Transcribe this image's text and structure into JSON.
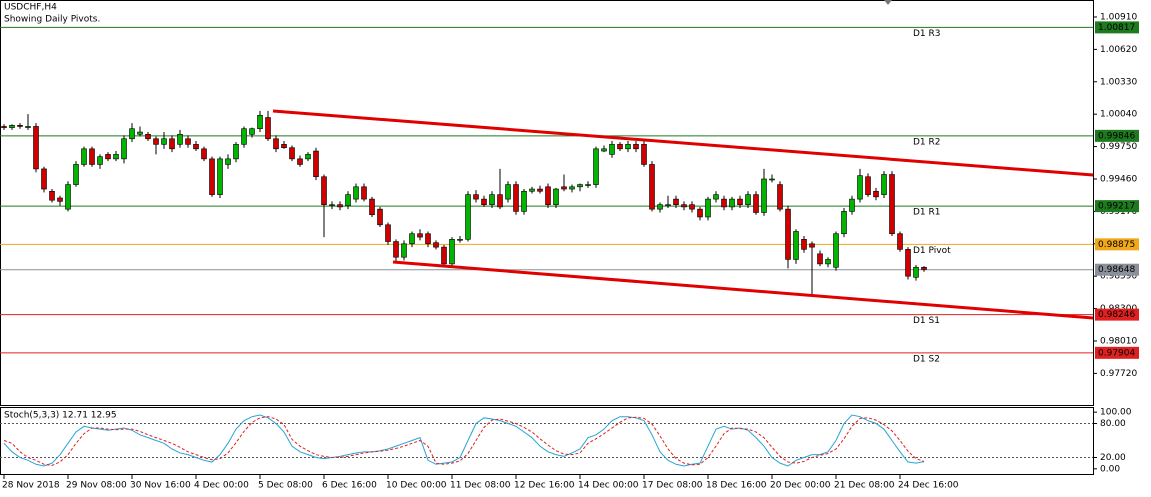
{
  "chart_data": [
    {
      "type": "candlestick",
      "title": "USDCHF,H4",
      "subtitle": "Showing Daily Pivots.",
      "categories": [
        "28 Nov 2018",
        null,
        null,
        null,
        null,
        null,
        null,
        null,
        "29 Nov 08:00",
        null,
        null,
        null,
        null,
        null,
        null,
        null,
        "30 Nov 16:00",
        null,
        null,
        null,
        null,
        null,
        null,
        null,
        "4 Dec 00:00",
        null,
        null,
        null,
        null,
        null,
        null,
        null,
        "5 Dec 08:00",
        null,
        null,
        null,
        null,
        null,
        null,
        null,
        "6 Dec 16:00",
        null,
        null,
        null,
        null,
        null,
        null,
        null,
        "10 Dec 00:00",
        null,
        null,
        null,
        null,
        null,
        null,
        null,
        "11 Dec 08:00",
        null,
        null,
        null,
        null,
        null,
        null,
        null,
        "12 Dec 16:00",
        null,
        null,
        null,
        null,
        null,
        null,
        null,
        "14 Dec 00:00",
        null,
        null,
        null,
        null,
        null,
        null,
        null,
        "17 Dec 08:00",
        null,
        null,
        null,
        null,
        null,
        null,
        null,
        "18 Dec 16:00",
        null,
        null,
        null,
        null,
        null,
        null,
        null,
        "20 Dec 00:00",
        null,
        null,
        null,
        null,
        null,
        null,
        null,
        "21 Dec 08:00",
        null,
        null,
        null,
        null,
        null,
        null,
        null,
        "24 Dec 16:00",
        null,
        null,
        null
      ],
      "open": [
        0.9993,
        0.9992,
        0.9994,
        0.9992,
        0.9993,
        0.9955,
        0.9935,
        0.9929,
        0.9919,
        0.9941,
        0.9959,
        0.9973,
        0.9959,
        0.9968,
        0.9964,
        0.9964,
        0.9982,
        0.9986,
        0.9986,
        0.9982,
        0.9977,
        0.9982,
        0.9977,
        0.9982,
        0.9977,
        0.9973,
        0.9964,
        0.9932,
        0.9959,
        0.9964,
        0.9977,
        0.9986,
        0.9991,
        1.0001,
        0.9982,
        0.9977,
        0.9974,
        0.9964,
        0.9964,
        0.9971,
        0.9948,
        0.9923,
        0.9923,
        0.9922,
        0.9928,
        0.9939,
        0.9928,
        0.9919,
        0.9905,
        0.989,
        0.9876,
        0.9888,
        0.9897,
        0.9897,
        0.9889,
        0.9885,
        0.987,
        0.9892,
        0.9892,
        0.9932,
        0.9928,
        0.9923,
        0.9932,
        0.9928,
        0.9941,
        0.9917,
        0.9935,
        0.9937,
        0.9939,
        0.9923,
        0.9939,
        0.9937,
        0.9939,
        0.9941,
        0.9941,
        0.9971,
        0.9968,
        0.9977,
        0.9973,
        0.9977,
        0.9977,
        0.9959,
        0.9919,
        0.9923,
        0.9928,
        0.9923,
        0.9923,
        0.9919,
        0.9912,
        0.9928,
        0.9928,
        0.9921,
        0.9928,
        0.9923,
        0.9932,
        0.9916,
        0.9946,
        0.9941,
        0.9919,
        0.9874,
        0.9892,
        0.9888,
        0.9879,
        0.987,
        0.9867,
        0.9897,
        0.9917,
        0.9928,
        0.9948,
        0.9935,
        0.9932,
        0.995,
        0.9897,
        0.9883,
        0.9858,
        0.9867
      ],
      "high": [
        0.9995,
        0.9995,
        0.9996,
        1.0004,
        0.9996,
        0.9957,
        0.9937,
        0.9931,
        0.9944,
        0.9962,
        0.9975,
        0.9975,
        0.9968,
        0.997,
        0.9971,
        0.9985,
        0.9996,
        0.9993,
        0.9988,
        0.9984,
        0.9988,
        0.9985,
        0.999,
        0.9985,
        0.998,
        0.9975,
        0.9966,
        0.9966,
        0.9968,
        0.9979,
        0.9993,
        0.9992,
        1.0007,
        1.0007,
        0.9985,
        0.998,
        0.9976,
        0.9967,
        0.997,
        0.9974,
        0.995,
        0.9926,
        0.9926,
        0.9935,
        0.9942,
        0.9942,
        0.993,
        0.9921,
        0.9907,
        0.9892,
        0.9891,
        0.9899,
        0.9901,
        0.9899,
        0.9891,
        0.9887,
        0.9894,
        0.9895,
        0.9935,
        0.9936,
        0.9931,
        0.9935,
        0.9955,
        0.9944,
        0.9944,
        0.9937,
        0.9939,
        0.994,
        0.9942,
        0.9938,
        0.995,
        0.9941,
        0.9942,
        0.9944,
        0.9975,
        0.9976,
        0.998,
        0.9979,
        0.998,
        0.998,
        0.998,
        0.9962,
        0.9925,
        0.9931,
        0.9931,
        0.9926,
        0.9926,
        0.9921,
        0.993,
        0.9935,
        0.9931,
        0.993,
        0.9931,
        0.9935,
        0.9935,
        0.9955,
        0.995,
        0.9944,
        0.9922,
        0.9901,
        0.9895,
        0.989,
        0.9882,
        0.9876,
        0.9899,
        0.992,
        0.9931,
        0.9955,
        0.9951,
        0.9938,
        0.9953,
        0.9953,
        0.9899,
        0.9885,
        0.9869,
        0.9868
      ],
      "low": [
        0.999,
        0.999,
        0.9991,
        0.999,
        0.9952,
        0.9934,
        0.9925,
        0.9922,
        0.9917,
        0.9939,
        0.9957,
        0.9957,
        0.9955,
        0.9962,
        0.9962,
        0.996,
        0.9979,
        0.9984,
        0.998,
        0.9968,
        0.9973,
        0.997,
        0.9974,
        0.9974,
        0.9971,
        0.9962,
        0.993,
        0.9929,
        0.9955,
        0.9961,
        0.9974,
        0.9983,
        0.9988,
        0.998,
        0.997,
        0.9973,
        0.9962,
        0.9957,
        0.9962,
        0.9945,
        0.9894,
        0.9919,
        0.9918,
        0.9919,
        0.9925,
        0.9926,
        0.9912,
        0.9903,
        0.9887,
        0.9872,
        0.9873,
        0.9885,
        0.9891,
        0.9885,
        0.9883,
        0.9868,
        0.9867,
        0.9889,
        0.989,
        0.9925,
        0.9921,
        0.992,
        0.9919,
        0.9925,
        0.9914,
        0.9914,
        0.9933,
        0.9933,
        0.992,
        0.992,
        0.9935,
        0.9934,
        0.9935,
        0.9938,
        0.9938,
        0.997,
        0.9965,
        0.9971,
        0.997,
        0.997,
        0.9957,
        0.9917,
        0.9916,
        0.992,
        0.992,
        0.9918,
        0.9916,
        0.9909,
        0.9909,
        0.9925,
        0.9918,
        0.9918,
        0.992,
        0.992,
        0.9914,
        0.9913,
        0.9943,
        0.9917,
        0.9866,
        0.987,
        0.988,
        0.9842,
        0.9868,
        0.9867,
        0.9864,
        0.9894,
        0.9914,
        0.9925,
        0.993,
        0.9927,
        0.9929,
        0.9895,
        0.9881,
        0.9856,
        0.9855,
        0.9863
      ],
      "close": [
        0.9992,
        0.9994,
        0.9993,
        0.9993,
        0.9955,
        0.9937,
        0.9927,
        0.9926,
        0.9941,
        0.9959,
        0.9973,
        0.9959,
        0.9966,
        0.9964,
        0.9968,
        0.9982,
        0.9991,
        0.9988,
        0.9982,
        0.9977,
        0.9982,
        0.9973,
        0.9986,
        0.9977,
        0.9973,
        0.9964,
        0.9932,
        0.9964,
        0.9964,
        0.9977,
        0.9991,
        0.9991,
        1.0003,
        0.9982,
        0.9973,
        0.9974,
        0.9964,
        0.9959,
        0.9968,
        0.9948,
        0.9923,
        0.9923,
        0.9921,
        0.9932,
        0.9939,
        0.9928,
        0.9914,
        0.9905,
        0.989,
        0.9876,
        0.9888,
        0.9897,
        0.9894,
        0.9888,
        0.9885,
        0.987,
        0.9892,
        0.9892,
        0.9932,
        0.9928,
        0.9923,
        0.9932,
        0.9921,
        0.9941,
        0.9917,
        0.9935,
        0.9937,
        0.9935,
        0.9923,
        0.9937,
        0.9937,
        0.9939,
        0.9941,
        0.9941,
        0.9973,
        0.9973,
        0.9977,
        0.9973,
        0.9977,
        0.9973,
        0.9959,
        0.9919,
        0.9923,
        0.9923,
        0.9923,
        0.9921,
        0.9919,
        0.9912,
        0.9928,
        0.9932,
        0.9921,
        0.9928,
        0.9923,
        0.9932,
        0.9916,
        0.9946,
        0.9946,
        0.9919,
        0.9874,
        0.9899,
        0.9883,
        0.9885,
        0.987,
        0.9874,
        0.9897,
        0.9917,
        0.9928,
        0.9949,
        0.9932,
        0.993,
        0.995,
        0.9897,
        0.9883,
        0.9859,
        0.9867,
        0.9865
      ],
      "bull_color": "#00b400",
      "bear_color": "#d00000",
      "ylim": [
        0.97437,
        1.01062
      ],
      "yticks": [
        {
          "value": 1.0091,
          "label": "1.00910"
        },
        {
          "value": 1.0062,
          "label": "1.00620"
        },
        {
          "value": 1.0033,
          "label": "1.00330"
        },
        {
          "value": 1.0004,
          "label": "1.00040"
        },
        {
          "value": 0.9975,
          "label": "0.99750"
        },
        {
          "value": 0.9946,
          "label": "0.99460"
        },
        {
          "value": 0.9917,
          "label": "0.99170"
        },
        {
          "value": 0.9888,
          "label": "0.98880"
        },
        {
          "value": 0.9859,
          "label": "0.98590"
        },
        {
          "value": 0.983,
          "label": "0.98300"
        },
        {
          "value": 0.9801,
          "label": "0.98010"
        },
        {
          "value": 0.9772,
          "label": "0.97720"
        }
      ],
      "levels": [
        {
          "name": "D1 R3",
          "value": 1.00817,
          "label": "1.00817",
          "color": "#1e7a1e"
        },
        {
          "name": "D1 R2",
          "value": 0.99846,
          "label": "0.99846",
          "color": "#1e7a1e"
        },
        {
          "name": "D1 R1",
          "value": 0.99217,
          "label": "0.99217",
          "color": "#1e7a1e"
        },
        {
          "name": "D1 Pivot",
          "value": 0.98875,
          "label": "0.98875",
          "color": "#f0a818"
        },
        {
          "name": "D1 S1",
          "value": 0.98246,
          "label": "0.98246",
          "color": "#e02020"
        },
        {
          "name": "D1 S2",
          "value": 0.97904,
          "label": "0.97904",
          "color": "#e02020"
        }
      ],
      "last_price": {
        "value": 0.98648,
        "label": "0.98648",
        "color": "#8a9099"
      }
    },
    {
      "type": "line",
      "title": "Stoch(5,3,3) 12.71 12.95",
      "series": [
        {
          "color": "#27a5d6",
          "style": "solid",
          "values": [
            45,
            30,
            20,
            15,
            8,
            5,
            10,
            25,
            45,
            65,
            75,
            72,
            70,
            68,
            70,
            72,
            68,
            60,
            55,
            50,
            45,
            35,
            28,
            25,
            20,
            15,
            12,
            25,
            45,
            70,
            85,
            92,
            95,
            90,
            80,
            65,
            40,
            30,
            25,
            20,
            18,
            20,
            22,
            25,
            28,
            30,
            30,
            32,
            35,
            40,
            45,
            50,
            55,
            15,
            8,
            10,
            12,
            20,
            50,
            80,
            90,
            88,
            85,
            80,
            75,
            65,
            55,
            40,
            30,
            25,
            22,
            28,
            35,
            55,
            60,
            70,
            85,
            92,
            92,
            90,
            85,
            60,
            30,
            15,
            8,
            5,
            8,
            10,
            40,
            70,
            75,
            70,
            72,
            68,
            55,
            40,
            20,
            10,
            5,
            15,
            20,
            25,
            25,
            30,
            50,
            80,
            95,
            92,
            85,
            80,
            70,
            50,
            30,
            12,
            10,
            12.71
          ]
        },
        {
          "color": "#e02020",
          "style": "dashed",
          "values": [
            50,
            45,
            30,
            20,
            15,
            8,
            6,
            12,
            25,
            45,
            62,
            72,
            72,
            70,
            69,
            70,
            70,
            66,
            60,
            55,
            50,
            45,
            38,
            30,
            25,
            20,
            16,
            18,
            28,
            46,
            66,
            82,
            90,
            92,
            88,
            78,
            52,
            40,
            32,
            25,
            22,
            20,
            20,
            22,
            25,
            28,
            30,
            31,
            33,
            36,
            40,
            45,
            50,
            40,
            10,
            8,
            10,
            14,
            27,
            50,
            73,
            86,
            88,
            84,
            80,
            73,
            65,
            53,
            42,
            32,
            26,
            25,
            28,
            45,
            53,
            62,
            72,
            82,
            90,
            91,
            89,
            79,
            58,
            35,
            18,
            10,
            7,
            8,
            20,
            40,
            62,
            72,
            71,
            70,
            65,
            55,
            38,
            22,
            12,
            10,
            13,
            20,
            24,
            27,
            35,
            53,
            75,
            89,
            90,
            86,
            78,
            67,
            50,
            31,
            18,
            12.95
          ]
        }
      ],
      "ylim": [
        -10.9,
        109.1
      ],
      "yticks": [
        {
          "value": 100,
          "label": "100.00"
        },
        {
          "value": 80,
          "label": "80.00"
        },
        {
          "value": 20,
          "label": "20.00"
        },
        {
          "value": 0,
          "label": "0.00"
        }
      ],
      "levels": [
        80,
        20
      ]
    }
  ]
}
